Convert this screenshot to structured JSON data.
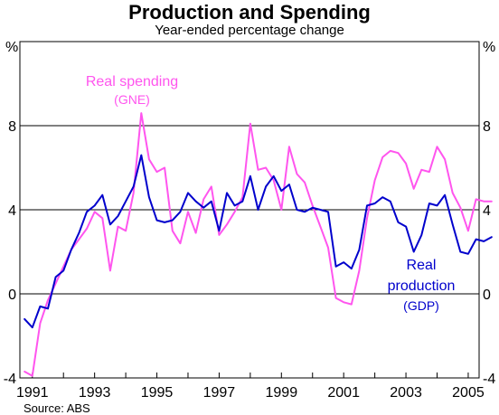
{
  "chart_data": {
    "type": "line",
    "title": "Production and Spending",
    "subtitle": "Year-ended percentage change",
    "ylabel_left": "%",
    "ylabel_right": "%",
    "ylim": [
      -4,
      12
    ],
    "yticks": [
      "-4",
      "0",
      "4",
      "8"
    ],
    "xlim": [
      1990.6,
      2005.35
    ],
    "xticks": [
      "1991",
      "1993",
      "1995",
      "1997",
      "1999",
      "2001",
      "2003",
      "2005"
    ],
    "grid": true,
    "source": "Source: ABS",
    "series": [
      {
        "name": "Real spending",
        "name_sub": "(GNE)",
        "color": "#ff55ee",
        "points": [
          [
            1990.75,
            -3.7
          ],
          [
            1991.0,
            -3.9
          ],
          [
            1991.25,
            -1.4
          ],
          [
            1991.5,
            -0.3
          ],
          [
            1991.75,
            0.5
          ],
          [
            1992.0,
            1.3
          ],
          [
            1992.25,
            2.1
          ],
          [
            1992.5,
            2.6
          ],
          [
            1992.75,
            3.1
          ],
          [
            1993.0,
            3.9
          ],
          [
            1993.25,
            3.6
          ],
          [
            1993.5,
            1.1
          ],
          [
            1993.75,
            3.2
          ],
          [
            1994.0,
            3.0
          ],
          [
            1994.25,
            4.8
          ],
          [
            1994.5,
            8.6
          ],
          [
            1994.75,
            6.4
          ],
          [
            1995.0,
            5.8
          ],
          [
            1995.25,
            6.0
          ],
          [
            1995.5,
            3.0
          ],
          [
            1995.75,
            2.4
          ],
          [
            1996.0,
            3.9
          ],
          [
            1996.25,
            2.9
          ],
          [
            1996.5,
            4.5
          ],
          [
            1996.75,
            5.1
          ],
          [
            1997.0,
            2.8
          ],
          [
            1997.25,
            3.3
          ],
          [
            1997.5,
            3.9
          ],
          [
            1997.75,
            4.6
          ],
          [
            1998.0,
            8.1
          ],
          [
            1998.25,
            5.9
          ],
          [
            1998.5,
            6.0
          ],
          [
            1998.75,
            5.4
          ],
          [
            1999.0,
            4.0
          ],
          [
            1999.25,
            7.0
          ],
          [
            1999.5,
            5.7
          ],
          [
            1999.75,
            5.3
          ],
          [
            2000.0,
            4.2
          ],
          [
            2000.25,
            3.2
          ],
          [
            2000.5,
            2.2
          ],
          [
            2000.75,
            -0.2
          ],
          [
            2001.0,
            -0.4
          ],
          [
            2001.25,
            -0.5
          ],
          [
            2001.5,
            1.1
          ],
          [
            2001.75,
            3.6
          ],
          [
            2002.0,
            5.4
          ],
          [
            2002.25,
            6.5
          ],
          [
            2002.5,
            6.8
          ],
          [
            2002.75,
            6.7
          ],
          [
            2003.0,
            6.2
          ],
          [
            2003.25,
            5.0
          ],
          [
            2003.5,
            5.9
          ],
          [
            2003.75,
            5.8
          ],
          [
            2004.0,
            7.0
          ],
          [
            2004.25,
            6.4
          ],
          [
            2004.5,
            4.8
          ],
          [
            2004.75,
            4.1
          ],
          [
            2005.0,
            3.0
          ],
          [
            2005.25,
            4.5
          ],
          [
            2005.5,
            4.4
          ],
          [
            2005.75,
            4.4
          ]
        ]
      },
      {
        "name": "Real",
        "name_line2": "production",
        "name_sub": "(GDP)",
        "color": "#0000cc",
        "points": [
          [
            1990.75,
            -1.2
          ],
          [
            1991.0,
            -1.6
          ],
          [
            1991.25,
            -0.6
          ],
          [
            1991.5,
            -0.7
          ],
          [
            1991.75,
            0.8
          ],
          [
            1992.0,
            1.1
          ],
          [
            1992.25,
            2.1
          ],
          [
            1992.5,
            2.9
          ],
          [
            1992.75,
            3.9
          ],
          [
            1993.0,
            4.2
          ],
          [
            1993.25,
            4.7
          ],
          [
            1993.5,
            3.3
          ],
          [
            1993.75,
            3.7
          ],
          [
            1994.0,
            4.4
          ],
          [
            1994.25,
            5.1
          ],
          [
            1994.5,
            6.6
          ],
          [
            1994.75,
            4.6
          ],
          [
            1995.0,
            3.5
          ],
          [
            1995.25,
            3.4
          ],
          [
            1995.5,
            3.5
          ],
          [
            1995.75,
            3.9
          ],
          [
            1996.0,
            4.8
          ],
          [
            1996.25,
            4.4
          ],
          [
            1996.5,
            4.1
          ],
          [
            1996.75,
            4.4
          ],
          [
            1997.0,
            3.0
          ],
          [
            1997.25,
            4.8
          ],
          [
            1997.5,
            4.2
          ],
          [
            1997.75,
            4.4
          ],
          [
            1998.0,
            5.6
          ],
          [
            1998.25,
            4.0
          ],
          [
            1998.5,
            5.1
          ],
          [
            1998.75,
            5.6
          ],
          [
            1999.0,
            4.9
          ],
          [
            1999.25,
            5.2
          ],
          [
            1999.5,
            4.0
          ],
          [
            1999.75,
            3.9
          ],
          [
            2000.0,
            4.1
          ],
          [
            2000.25,
            4.0
          ],
          [
            2000.5,
            3.9
          ],
          [
            2000.75,
            1.3
          ],
          [
            2001.0,
            1.5
          ],
          [
            2001.25,
            1.2
          ],
          [
            2001.5,
            2.1
          ],
          [
            2001.75,
            4.2
          ],
          [
            2002.0,
            4.3
          ],
          [
            2002.25,
            4.6
          ],
          [
            2002.5,
            4.4
          ],
          [
            2002.75,
            3.4
          ],
          [
            2003.0,
            3.2
          ],
          [
            2003.25,
            2.0
          ],
          [
            2003.5,
            2.8
          ],
          [
            2003.75,
            4.3
          ],
          [
            2004.0,
            4.2
          ],
          [
            2004.25,
            4.7
          ],
          [
            2004.5,
            3.3
          ],
          [
            2004.75,
            2.0
          ],
          [
            2005.0,
            1.9
          ],
          [
            2005.25,
            2.6
          ],
          [
            2005.5,
            2.5
          ],
          [
            2005.75,
            2.7
          ]
        ]
      }
    ]
  }
}
